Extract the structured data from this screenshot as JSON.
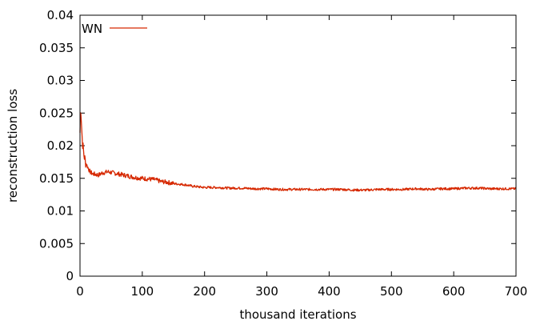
{
  "chart_data": {
    "type": "line",
    "title": "",
    "xlabel": "thousand iterations",
    "ylabel": "reconstruction loss",
    "xlim": [
      0,
      700
    ],
    "ylim": [
      0,
      0.04
    ],
    "x_ticks": [
      "0",
      "100",
      "200",
      "300",
      "400",
      "500",
      "600",
      "700"
    ],
    "y_ticks": [
      "0",
      "0.005",
      "0.01",
      "0.015",
      "0.02",
      "0.025",
      "0.03",
      "0.035",
      "0.04"
    ],
    "grid": false,
    "legend_position": "top-left",
    "series": [
      {
        "name": "WN",
        "color": "#d62800",
        "x": [
          0,
          1,
          2,
          3,
          4,
          6,
          8,
          10,
          13,
          16,
          20,
          25,
          30,
          35,
          40,
          45,
          50,
          55,
          60,
          70,
          80,
          90,
          100,
          110,
          120,
          130,
          140,
          150,
          160,
          170,
          180,
          190,
          200,
          220,
          240,
          260,
          280,
          300,
          320,
          340,
          360,
          380,
          400,
          420,
          440,
          460,
          480,
          500,
          520,
          540,
          560,
          580,
          600,
          620,
          640,
          660,
          680,
          700
        ],
        "y": [
          0.022,
          0.0262,
          0.0245,
          0.022,
          0.0205,
          0.0188,
          0.0178,
          0.0172,
          0.0166,
          0.016,
          0.0157,
          0.0156,
          0.0155,
          0.0158,
          0.0159,
          0.016,
          0.0159,
          0.0158,
          0.0157,
          0.0155,
          0.0153,
          0.0151,
          0.015,
          0.0149,
          0.0148,
          0.0145,
          0.0144,
          0.0142,
          0.0141,
          0.014,
          0.0138,
          0.0137,
          0.0136,
          0.0136,
          0.0135,
          0.0135,
          0.0134,
          0.0134,
          0.0133,
          0.0133,
          0.0133,
          0.0133,
          0.0133,
          0.0133,
          0.0132,
          0.0132,
          0.0133,
          0.0133,
          0.0133,
          0.0134,
          0.0133,
          0.0134,
          0.0134,
          0.0135,
          0.0135,
          0.0134,
          0.0134,
          0.0134
        ]
      }
    ]
  }
}
